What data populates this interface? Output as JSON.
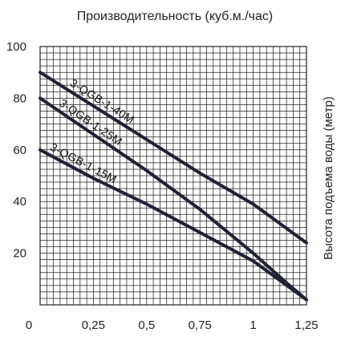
{
  "chart_data": {
    "type": "line",
    "title": "Производительность (куб.м./час)",
    "xlabel": "",
    "ylabel": "Высота подъема воды (метр)",
    "xlim": [
      0,
      1.25
    ],
    "ylim": [
      0,
      100
    ],
    "x_ticks": [
      0,
      0.25,
      0.5,
      0.75,
      1,
      1.25
    ],
    "x_tick_labels": [
      "0",
      "0,25",
      "0,5",
      "0,75",
      "1",
      "1,25"
    ],
    "y_ticks": [
      20,
      40,
      60,
      80,
      100
    ],
    "y_tick_labels": [
      "20",
      "40",
      "60",
      "80",
      "100"
    ],
    "grid": true,
    "legend": "none",
    "series": [
      {
        "name": "3-QGB-1-40M",
        "x": [
          0,
          0.25,
          0.5,
          0.75,
          1,
          1.25
        ],
        "y": [
          90,
          77,
          64,
          51,
          39,
          24
        ]
      },
      {
        "name": "3-QGB-1-25M",
        "x": [
          0,
          0.25,
          0.5,
          0.75,
          1,
          1.15,
          1.25
        ],
        "y": [
          80,
          66,
          52,
          37,
          20,
          9,
          2
        ]
      },
      {
        "name": "3-QGB-1-15M",
        "x": [
          0,
          0.25,
          0.5,
          0.75,
          1,
          1.25
        ],
        "y": [
          60,
          49,
          39,
          28,
          17,
          2
        ]
      }
    ],
    "colors": {
      "line": "#1f2233",
      "grid": "#222222"
    }
  }
}
